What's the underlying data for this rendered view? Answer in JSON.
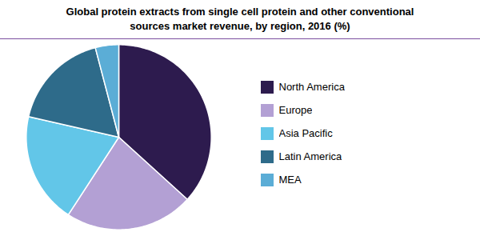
{
  "chart_data": {
    "type": "pie",
    "title": "Global protein extracts from single cell protein and other conventional\nsources market revenue, by region, 2016 (%)",
    "categories": [
      "North America",
      "Europe",
      "Asia Pacific",
      "Latin America",
      "MEA"
    ],
    "values": [
      36,
      22,
      19,
      17,
      4
    ],
    "colors": [
      "#2d1b4e",
      "#b3a0d4",
      "#62c6e8",
      "#2e6b8a",
      "#5badd6"
    ],
    "legend": "right"
  }
}
